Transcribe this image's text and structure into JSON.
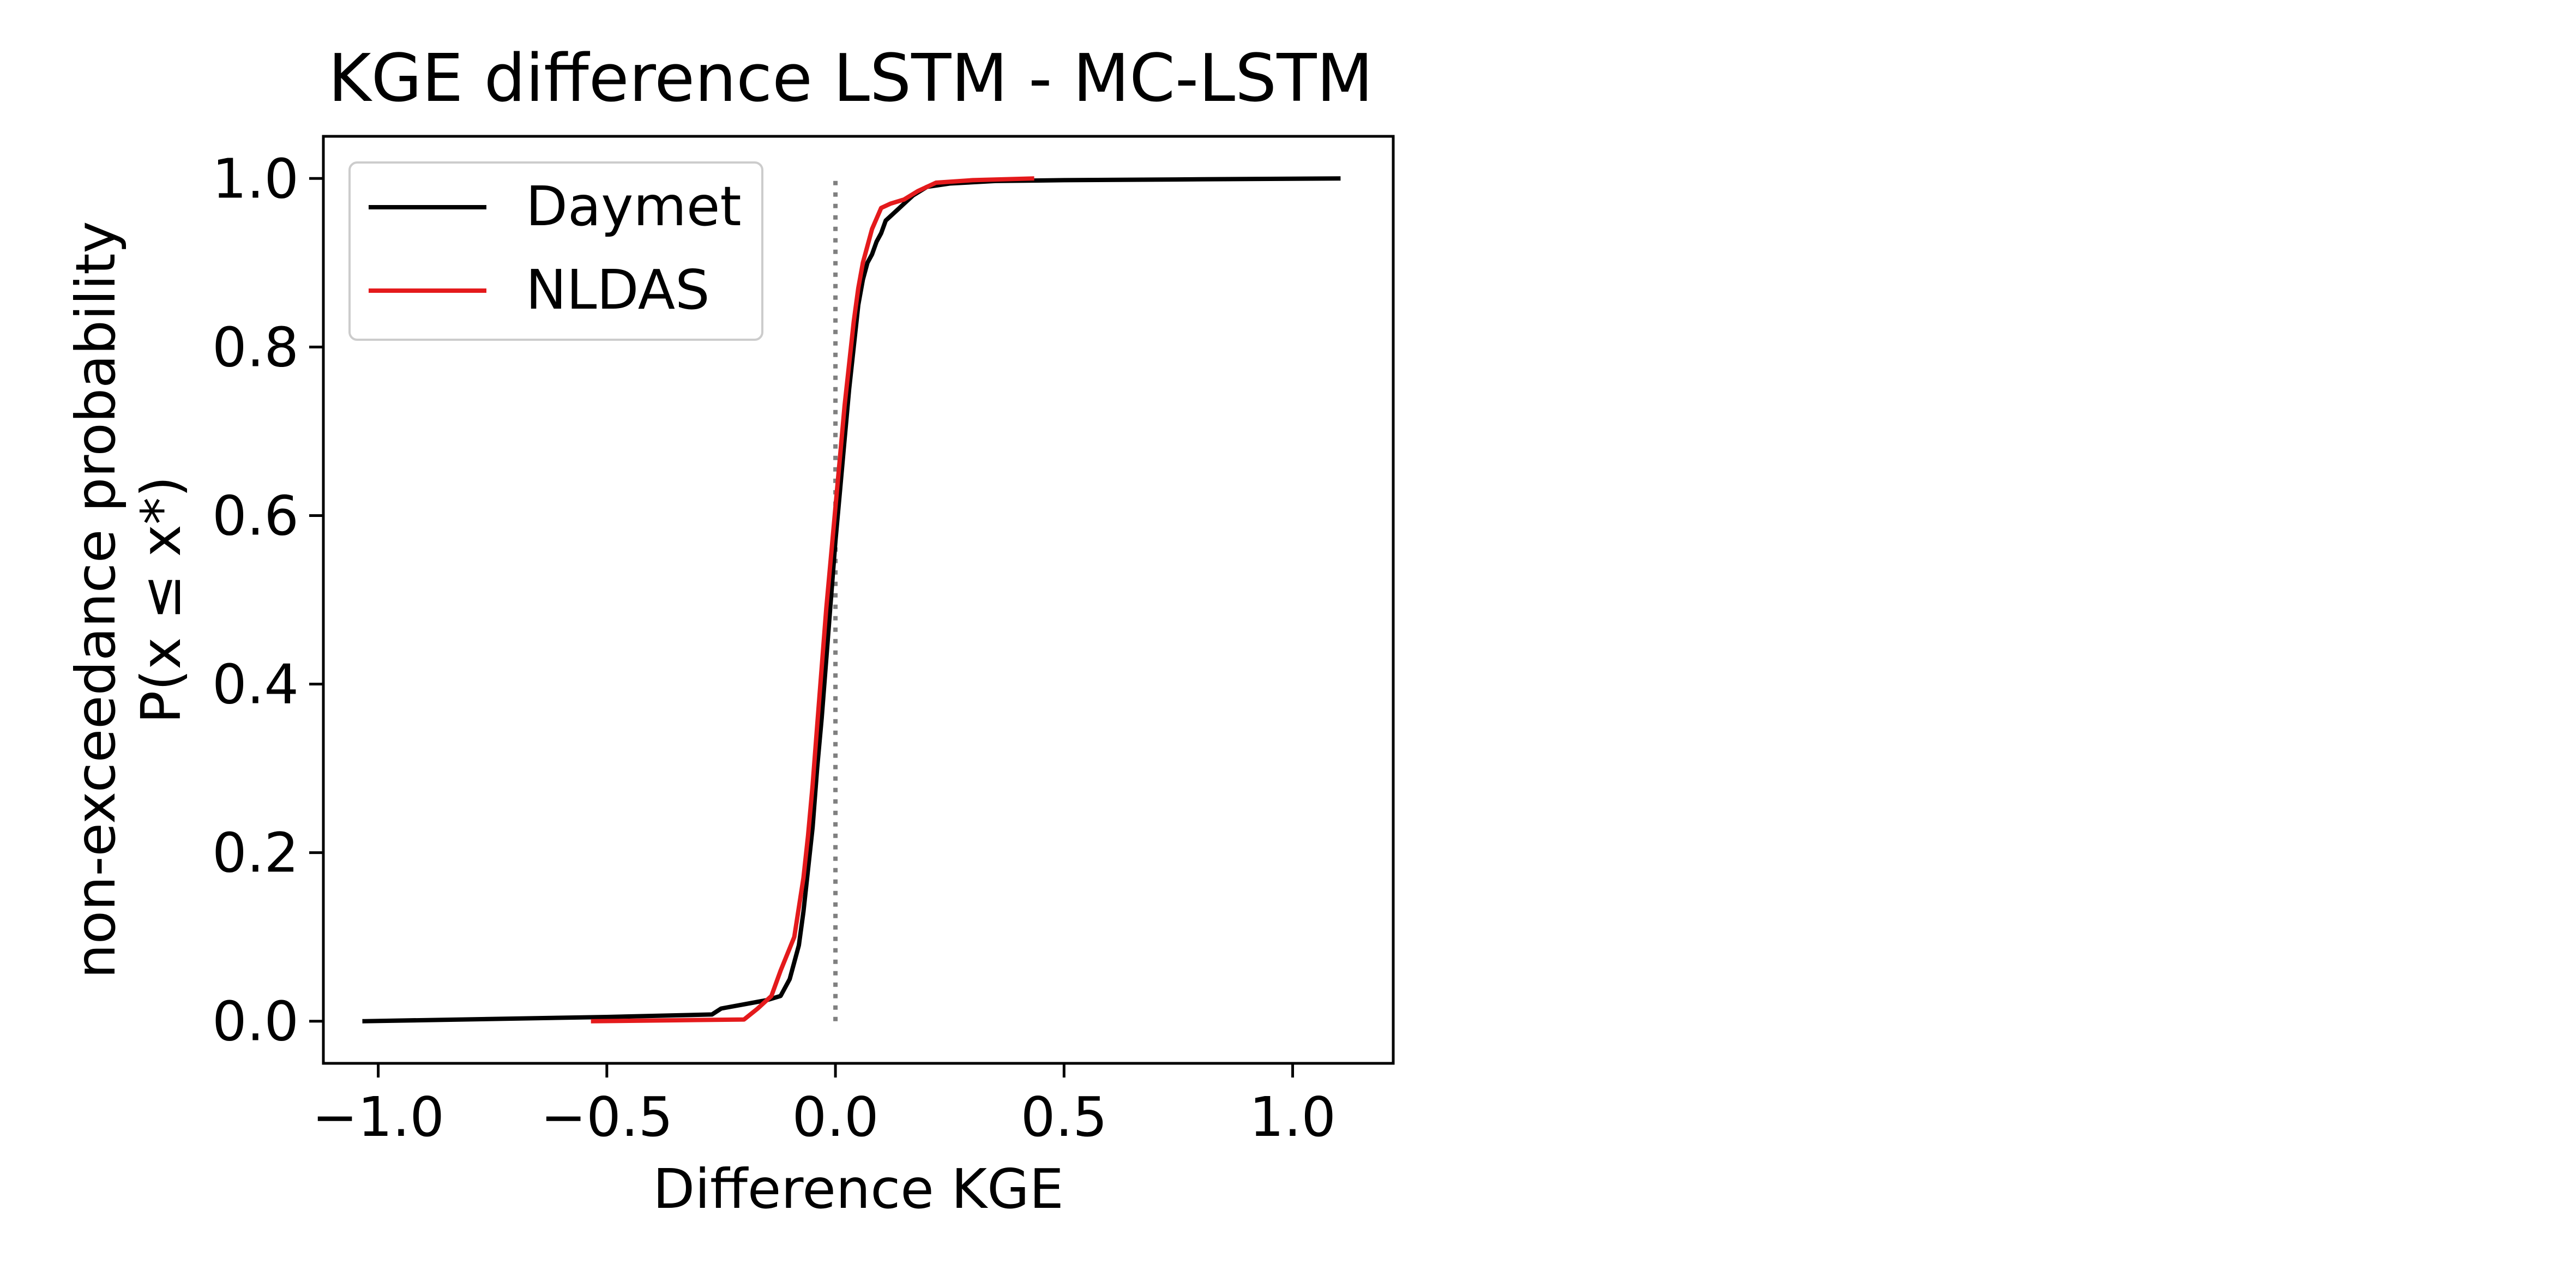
{
  "chart_data": {
    "type": "line",
    "title": "KGE difference LSTM - MC-LSTM",
    "xlabel": "Difference KGE",
    "ylabel_line1": "non-exceedance probability",
    "ylabel_line2": "P(x ≤ x*)",
    "xlim": [
      -1.12,
      1.22
    ],
    "ylim": [
      -0.05,
      1.05
    ],
    "x_ticks": [
      -1.0,
      -0.5,
      0.0,
      0.5,
      1.0
    ],
    "x_tick_labels": [
      "−1.0",
      "−0.5",
      "0.0",
      "0.5",
      "1.0"
    ],
    "y_ticks": [
      0.0,
      0.2,
      0.4,
      0.6,
      0.8,
      1.0
    ],
    "y_tick_labels": [
      "0.0",
      "0.2",
      "0.4",
      "0.6",
      "0.8",
      "1.0"
    ],
    "grid": false,
    "legend_position": "top-left",
    "reference_line": {
      "x": 0.0,
      "y_range": [
        0.0,
        1.0
      ],
      "style": "dotted",
      "color": "#808080"
    },
    "series": [
      {
        "name": "Daymet",
        "color": "#000000",
        "x": [
          -1.03,
          -0.5,
          -0.27,
          -0.25,
          -0.2,
          -0.15,
          -0.12,
          -0.1,
          -0.08,
          -0.07,
          -0.06,
          -0.05,
          -0.04,
          -0.03,
          -0.02,
          -0.01,
          0.0,
          0.01,
          0.02,
          0.03,
          0.04,
          0.05,
          0.06,
          0.07,
          0.08,
          0.09,
          0.1,
          0.11,
          0.13,
          0.15,
          0.17,
          0.2,
          0.25,
          0.35,
          0.5,
          0.8,
          1.1
        ],
        "y": [
          0.0,
          0.005,
          0.008,
          0.015,
          0.02,
          0.025,
          0.03,
          0.05,
          0.09,
          0.13,
          0.18,
          0.23,
          0.3,
          0.36,
          0.43,
          0.5,
          0.57,
          0.63,
          0.69,
          0.75,
          0.8,
          0.85,
          0.88,
          0.9,
          0.91,
          0.925,
          0.935,
          0.95,
          0.96,
          0.97,
          0.98,
          0.99,
          0.994,
          0.997,
          0.998,
          0.999,
          1.0
        ]
      },
      {
        "name": "NLDAS",
        "color": "#e41a1c",
        "x": [
          -0.53,
          -0.2,
          -0.17,
          -0.14,
          -0.12,
          -0.09,
          -0.07,
          -0.06,
          -0.05,
          -0.04,
          -0.03,
          -0.02,
          -0.01,
          0.0,
          0.01,
          0.02,
          0.03,
          0.04,
          0.05,
          0.06,
          0.07,
          0.08,
          0.1,
          0.12,
          0.15,
          0.18,
          0.22,
          0.3,
          0.43
        ],
        "y": [
          0.0,
          0.002,
          0.015,
          0.03,
          0.06,
          0.1,
          0.17,
          0.22,
          0.28,
          0.35,
          0.42,
          0.49,
          0.55,
          0.61,
          0.67,
          0.73,
          0.78,
          0.83,
          0.87,
          0.9,
          0.92,
          0.94,
          0.965,
          0.97,
          0.975,
          0.985,
          0.995,
          0.998,
          1.0
        ]
      }
    ]
  }
}
